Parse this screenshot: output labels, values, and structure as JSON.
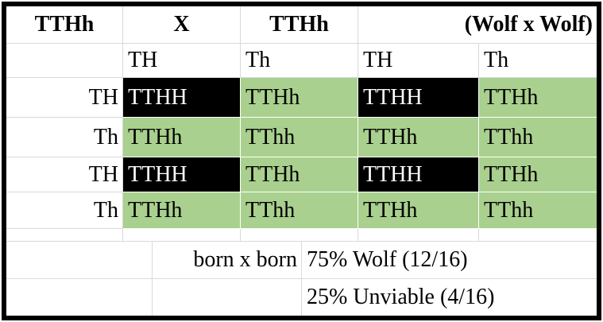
{
  "sheet": {
    "header": {
      "parent1": "TTHh",
      "cross_symbol": "X",
      "parent2": "TTHh",
      "note": "(Wolf x Wolf)"
    },
    "gametes": {
      "cols": [
        "TH",
        "Th",
        "TH",
        "Th"
      ]
    },
    "rows": [
      {
        "label": "TH",
        "cells": [
          {
            "text": "TTHH",
            "type": "lethal"
          },
          {
            "text": "TTHh",
            "type": "viable"
          },
          {
            "text": "TTHH",
            "type": "lethal"
          },
          {
            "text": "TTHh",
            "type": "viable"
          }
        ]
      },
      {
        "label": "Th",
        "cells": [
          {
            "text": "TTHh",
            "type": "viable"
          },
          {
            "text": "TThh",
            "type": "viable"
          },
          {
            "text": "TTHh",
            "type": "viable"
          },
          {
            "text": "TThh",
            "type": "viable"
          }
        ]
      },
      {
        "label": "TH",
        "cells": [
          {
            "text": "TTHH",
            "type": "lethal"
          },
          {
            "text": "TTHh",
            "type": "viable"
          },
          {
            "text": "TTHH",
            "type": "lethal"
          },
          {
            "text": "TTHh",
            "type": "viable"
          }
        ]
      },
      {
        "label": "Th",
        "cells": [
          {
            "text": "TTHh",
            "type": "viable"
          },
          {
            "text": "TThh",
            "type": "viable"
          },
          {
            "text": "TTHh",
            "type": "viable"
          },
          {
            "text": "TThh",
            "type": "viable"
          }
        ]
      }
    ],
    "summary": {
      "cross_label": "born x born",
      "line1": "75% Wolf (12/16)",
      "line2": "25% Unviable (4/16)"
    },
    "colors": {
      "viable_fill": "#a9d08e",
      "lethal_fill": "#000000",
      "lethal_text": "#ffffff",
      "gridline": "#d9d9d9",
      "outer_border": "#000000"
    }
  }
}
